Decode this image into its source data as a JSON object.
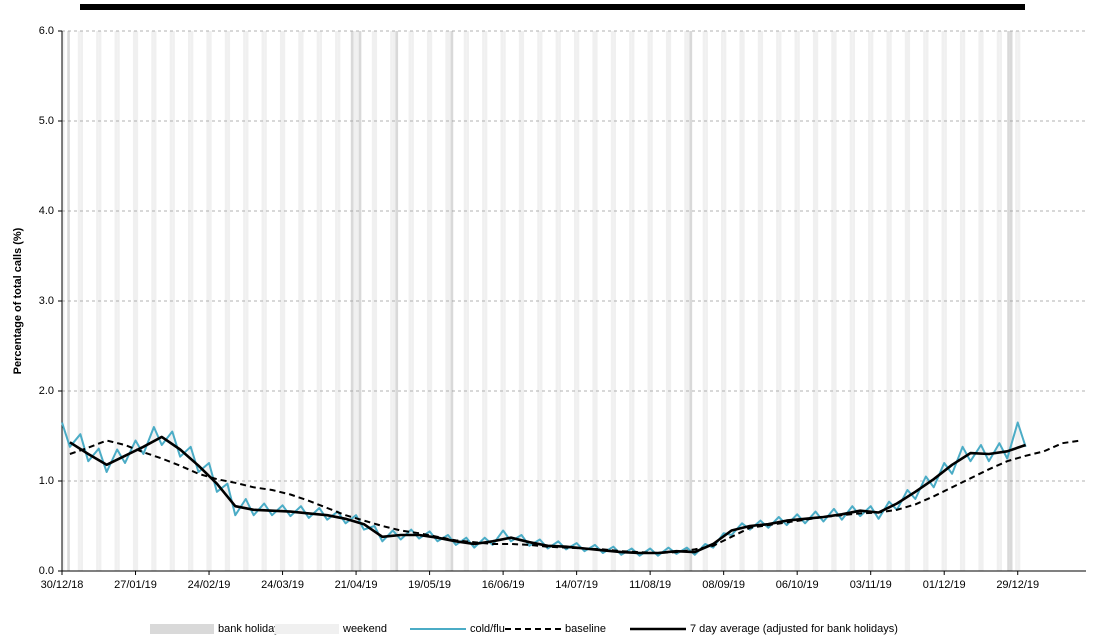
{
  "chart_data": {
    "type": "line",
    "y_label": "Percentage of total calls (%)",
    "ylim": [
      0,
      6
    ],
    "yticks": [
      {
        "value": 0,
        "label": "0.0"
      },
      {
        "value": 1,
        "label": "1.0"
      },
      {
        "value": 2,
        "label": "2.0"
      },
      {
        "value": 3,
        "label": "3.0"
      },
      {
        "value": 4,
        "label": "4.0"
      },
      {
        "value": 5,
        "label": "5.0"
      },
      {
        "value": 6,
        "label": "6.0"
      }
    ],
    "grid": true,
    "xlim": [
      "30/12/18",
      "24/01/20"
    ],
    "xticks": [
      "30/12/18",
      "27/01/19",
      "24/02/19",
      "24/03/19",
      "21/04/19",
      "19/05/19",
      "16/06/19",
      "14/07/19",
      "11/08/19",
      "08/09/19",
      "06/10/19",
      "03/11/19",
      "01/12/19",
      "29/12/19"
    ],
    "shading": [
      {
        "name": "bank holiday",
        "color": "#d9d9d9",
        "dates": [
          "01/01/19",
          "19/04/19",
          "22/04/19",
          "06/05/19",
          "27/05/19",
          "26/08/19",
          "25/12/19",
          "26/12/19"
        ]
      },
      {
        "name": "weekend",
        "color": "#f0f0f0"
      }
    ],
    "series": [
      {
        "name": "cold/flu",
        "color": "#4bacc6",
        "dash": false,
        "width": 2,
        "x": [
          "30/12/18",
          "02/01/19",
          "06/01/19",
          "09/01/19",
          "13/01/19",
          "16/01/19",
          "20/01/19",
          "23/01/19",
          "27/01/19",
          "30/01/19",
          "03/02/19",
          "06/02/19",
          "10/02/19",
          "13/02/19",
          "17/02/19",
          "20/02/19",
          "24/02/19",
          "27/02/19",
          "03/03/19",
          "06/03/19",
          "10/03/19",
          "13/03/19",
          "17/03/19",
          "20/03/19",
          "24/03/19",
          "27/03/19",
          "31/03/19",
          "03/04/19",
          "07/04/19",
          "10/04/19",
          "14/04/19",
          "17/04/19",
          "21/04/19",
          "24/04/19",
          "28/04/19",
          "01/05/19",
          "05/05/19",
          "08/05/19",
          "12/05/19",
          "15/05/19",
          "19/05/19",
          "22/05/19",
          "26/05/19",
          "29/05/19",
          "02/06/19",
          "05/06/19",
          "09/06/19",
          "12/06/19",
          "16/06/19",
          "19/06/19",
          "23/06/19",
          "26/06/19",
          "30/06/19",
          "03/07/19",
          "07/07/19",
          "10/07/19",
          "14/07/19",
          "17/07/19",
          "21/07/19",
          "24/07/19",
          "28/07/19",
          "31/07/19",
          "04/08/19",
          "07/08/19",
          "11/08/19",
          "14/08/19",
          "18/08/19",
          "21/08/19",
          "25/08/19",
          "28/08/19",
          "01/09/19",
          "04/09/19",
          "08/09/19",
          "11/09/19",
          "15/09/19",
          "18/09/19",
          "22/09/19",
          "25/09/19",
          "29/09/19",
          "02/10/19",
          "06/10/19",
          "09/10/19",
          "13/10/19",
          "16/10/19",
          "20/10/19",
          "23/10/19",
          "27/10/19",
          "30/10/19",
          "03/11/19",
          "06/11/19",
          "10/11/19",
          "13/11/19",
          "17/11/19",
          "20/11/19",
          "24/11/19",
          "27/11/19",
          "01/12/19",
          "04/12/19",
          "08/12/19",
          "11/12/19",
          "15/12/19",
          "18/12/19",
          "22/12/19",
          "25/12/19",
          "29/12/19",
          "01/01/20"
        ],
        "values": [
          1.65,
          1.38,
          1.52,
          1.22,
          1.36,
          1.1,
          1.35,
          1.2,
          1.45,
          1.3,
          1.6,
          1.4,
          1.55,
          1.27,
          1.38,
          1.1,
          1.2,
          0.88,
          0.97,
          0.62,
          0.8,
          0.62,
          0.75,
          0.62,
          0.73,
          0.61,
          0.72,
          0.59,
          0.7,
          0.57,
          0.66,
          0.53,
          0.62,
          0.46,
          0.5,
          0.33,
          0.45,
          0.35,
          0.46,
          0.36,
          0.44,
          0.33,
          0.4,
          0.29,
          0.37,
          0.26,
          0.37,
          0.29,
          0.45,
          0.33,
          0.4,
          0.28,
          0.35,
          0.25,
          0.33,
          0.24,
          0.31,
          0.22,
          0.29,
          0.2,
          0.27,
          0.18,
          0.25,
          0.17,
          0.25,
          0.17,
          0.26,
          0.19,
          0.26,
          0.18,
          0.3,
          0.26,
          0.42,
          0.4,
          0.53,
          0.46,
          0.56,
          0.48,
          0.6,
          0.51,
          0.63,
          0.53,
          0.66,
          0.55,
          0.69,
          0.57,
          0.72,
          0.61,
          0.72,
          0.58,
          0.77,
          0.68,
          0.9,
          0.8,
          1.05,
          0.93,
          1.2,
          1.08,
          1.38,
          1.22,
          1.4,
          1.22,
          1.42,
          1.25,
          1.65,
          1.38
        ]
      },
      {
        "name": "baseline",
        "color": "#000000",
        "dash": true,
        "width": 2,
        "x": [
          "02/01/19",
          "09/01/19",
          "16/01/19",
          "23/01/19",
          "30/01/19",
          "06/02/19",
          "13/02/19",
          "20/02/19",
          "27/02/19",
          "06/03/19",
          "13/03/19",
          "20/03/19",
          "27/03/19",
          "03/04/19",
          "10/04/19",
          "17/04/19",
          "24/04/19",
          "01/05/19",
          "08/05/19",
          "15/05/19",
          "22/05/19",
          "29/05/19",
          "05/06/19",
          "12/06/19",
          "19/06/19",
          "26/06/19",
          "03/07/19",
          "10/07/19",
          "17/07/19",
          "24/07/19",
          "31/07/19",
          "07/08/19",
          "14/08/19",
          "21/08/19",
          "28/08/19",
          "04/09/19",
          "11/09/19",
          "18/09/19",
          "25/09/19",
          "02/10/19",
          "09/10/19",
          "16/10/19",
          "23/10/19",
          "30/10/19",
          "06/11/19",
          "13/11/19",
          "20/11/19",
          "27/11/19",
          "04/12/19",
          "11/12/19",
          "18/12/19",
          "25/12/19",
          "01/01/20",
          "08/01/20",
          "15/01/20",
          "22/01/20"
        ],
        "values": [
          1.3,
          1.37,
          1.45,
          1.4,
          1.32,
          1.25,
          1.17,
          1.08,
          1.02,
          0.98,
          0.93,
          0.9,
          0.85,
          0.78,
          0.7,
          0.62,
          0.56,
          0.5,
          0.45,
          0.42,
          0.38,
          0.34,
          0.32,
          0.3,
          0.3,
          0.29,
          0.27,
          0.26,
          0.25,
          0.24,
          0.22,
          0.21,
          0.2,
          0.21,
          0.24,
          0.28,
          0.38,
          0.48,
          0.51,
          0.54,
          0.57,
          0.6,
          0.62,
          0.64,
          0.65,
          0.68,
          0.74,
          0.83,
          0.93,
          1.03,
          1.13,
          1.22,
          1.28,
          1.33,
          1.42,
          1.45
        ]
      },
      {
        "name": "7 day average (adjusted for bank holidays)",
        "color": "#000000",
        "dash": false,
        "width": 2.6,
        "x": [
          "02/01/19",
          "09/01/19",
          "16/01/19",
          "23/01/19",
          "30/01/19",
          "06/02/19",
          "13/02/19",
          "20/02/19",
          "27/02/19",
          "06/03/19",
          "13/03/19",
          "20/03/19",
          "27/03/19",
          "03/04/19",
          "10/04/19",
          "17/04/19",
          "24/04/19",
          "01/05/19",
          "08/05/19",
          "15/05/19",
          "22/05/19",
          "29/05/19",
          "05/06/19",
          "12/06/19",
          "19/06/19",
          "26/06/19",
          "03/07/19",
          "10/07/19",
          "17/07/19",
          "24/07/19",
          "31/07/19",
          "07/08/19",
          "14/08/19",
          "21/08/19",
          "28/08/19",
          "04/09/19",
          "11/09/19",
          "18/09/19",
          "25/09/19",
          "02/10/19",
          "09/10/19",
          "16/10/19",
          "23/10/19",
          "30/10/19",
          "06/11/19",
          "13/11/19",
          "20/11/19",
          "27/11/19",
          "04/12/19",
          "11/12/19",
          "18/12/19",
          "25/12/19",
          "01/01/20"
        ],
        "values": [
          1.43,
          1.3,
          1.18,
          1.28,
          1.38,
          1.49,
          1.35,
          1.17,
          0.97,
          0.72,
          0.68,
          0.67,
          0.66,
          0.64,
          0.62,
          0.58,
          0.52,
          0.38,
          0.4,
          0.4,
          0.37,
          0.33,
          0.3,
          0.33,
          0.37,
          0.32,
          0.28,
          0.27,
          0.25,
          0.23,
          0.21,
          0.2,
          0.2,
          0.22,
          0.21,
          0.3,
          0.45,
          0.5,
          0.52,
          0.56,
          0.58,
          0.6,
          0.63,
          0.67,
          0.65,
          0.75,
          0.88,
          1.02,
          1.18,
          1.31,
          1.3,
          1.33,
          1.4
        ]
      }
    ]
  }
}
